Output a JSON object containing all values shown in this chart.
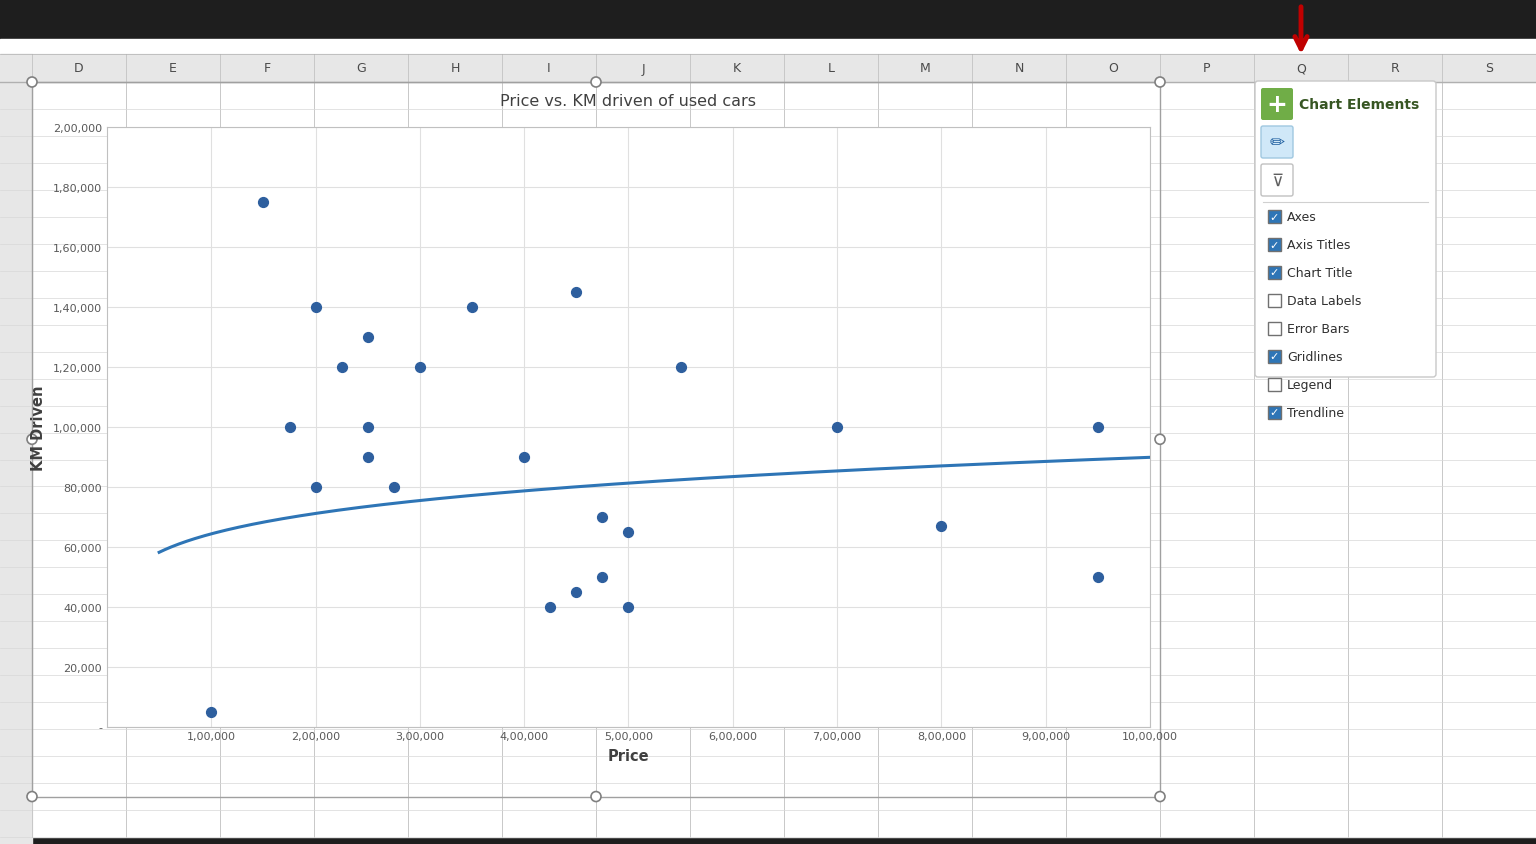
{
  "title": "Price vs. KM driven of used cars",
  "xlabel": "Price",
  "ylabel": "KM Driven",
  "scatter_x": [
    100000,
    150000,
    175000,
    200000,
    200000,
    225000,
    250000,
    250000,
    250000,
    275000,
    300000,
    350000,
    400000,
    425000,
    450000,
    450000,
    475000,
    475000,
    500000,
    500000,
    550000,
    700000,
    800000,
    950000,
    950000
  ],
  "scatter_y": [
    5000,
    175000,
    100000,
    140000,
    80000,
    120000,
    130000,
    100000,
    90000,
    80000,
    120000,
    140000,
    90000,
    40000,
    45000,
    145000,
    70000,
    50000,
    65000,
    40000,
    120000,
    100000,
    67000,
    50000,
    100000
  ],
  "scatter_color": "#2e5f9e",
  "trendline_color": "#2e75b6",
  "grid_color": "#e0e0e0",
  "title_color": "#404040",
  "label_color": "#404040",
  "tick_color": "#595959",
  "plot_bg": "#ffffff",
  "xlim": [
    0,
    1000000
  ],
  "ylim": [
    0,
    200000
  ],
  "xticks": [
    100000,
    200000,
    300000,
    400000,
    500000,
    600000,
    700000,
    800000,
    900000,
    1000000
  ],
  "yticks": [
    0,
    20000,
    40000,
    60000,
    80000,
    100000,
    120000,
    140000,
    160000,
    180000,
    200000
  ],
  "xtick_labels": [
    "1,00,000",
    "2,00,000",
    "3,00,000",
    "4,00,000",
    "5,00,000",
    "6,00,000",
    "7,00,000",
    "8,00,000",
    "9,00,000",
    "10,00,000"
  ],
  "ytick_labels": [
    "-",
    "20,000",
    "40,000",
    "60,000",
    "80,000",
    "1,00,000",
    "1,20,000",
    "1,40,000",
    "1,60,000",
    "1,80,000",
    "2,00,000"
  ],
  "chart_elements": {
    "title": "Chart Elements",
    "items": [
      "Axes",
      "Axis Titles",
      "Chart Title",
      "Data Labels",
      "Error Bars",
      "Gridlines",
      "Legend",
      "Trendline"
    ],
    "checked": [
      true,
      true,
      true,
      false,
      false,
      true,
      false,
      true
    ]
  },
  "excel_cols": [
    "D",
    "E",
    "F",
    "G",
    "H",
    "I",
    "J",
    "K",
    "L",
    "M",
    "N",
    "O",
    "P",
    "Q",
    "R",
    "S"
  ],
  "arrow_color": "#c00000",
  "panel_green": "#70ad47",
  "panel_text_color": "#375623",
  "header_bg": "#e7e7e7",
  "row_line_color": "#d8d8d8",
  "col_line_color": "#c8c8c8",
  "dark_bar_color": "#1e1e1e"
}
